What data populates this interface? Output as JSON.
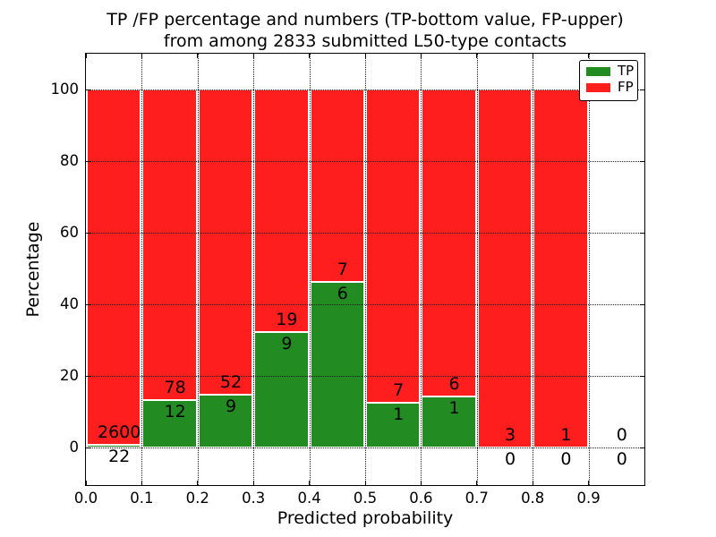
{
  "figure": {
    "title_line1": "TP /FP percentage and numbers (TP-bottom value, FP-upper)",
    "title_line2": "from among 2833 submitted L50-type contacts"
  },
  "chart_data": {
    "type": "bar",
    "mode": "stacked-percentage-histogram",
    "title": "TP /FP percentage and numbers (TP-bottom value, FP-upper)\nfrom among 2833 submitted L50-type contacts",
    "xlabel": "Predicted probability",
    "ylabel": "Percentage",
    "total_contacts": 2833,
    "bin_edges": [
      0.0,
      0.1,
      0.2,
      0.3,
      0.4,
      0.5,
      0.6,
      0.7,
      0.8,
      0.9,
      1.0
    ],
    "series": [
      {
        "name": "TP",
        "color": "#228b22",
        "counts": [
          22,
          12,
          9,
          9,
          6,
          1,
          1,
          0,
          0,
          0
        ]
      },
      {
        "name": "FP",
        "color": "#ff1e1e",
        "counts": [
          2600,
          78,
          52,
          19,
          7,
          7,
          6,
          3,
          1,
          0
        ]
      }
    ],
    "tp_percent_by_bin": [
      0.84,
      13.33,
      14.75,
      32.14,
      46.15,
      12.5,
      14.29,
      0.0,
      0.0,
      0.0
    ],
    "annotation_note": "FP count printed above TP/FP boundary, TP count printed below it",
    "xticks": [
      "0.0",
      "0.1",
      "0.2",
      "0.3",
      "0.4",
      "0.5",
      "0.6",
      "0.7",
      "0.8",
      "0.9"
    ],
    "yticks": [
      "0",
      "20",
      "40",
      "60",
      "80",
      "100"
    ],
    "xlim": [
      0.0,
      1.0
    ],
    "ylim": [
      -10.5,
      110.0
    ],
    "grid": "dotted",
    "legend": {
      "position": "upper right",
      "entries": [
        {
          "label": "TP",
          "color": "#228b22"
        },
        {
          "label": "FP",
          "color": "#ff1e1e"
        }
      ]
    }
  }
}
